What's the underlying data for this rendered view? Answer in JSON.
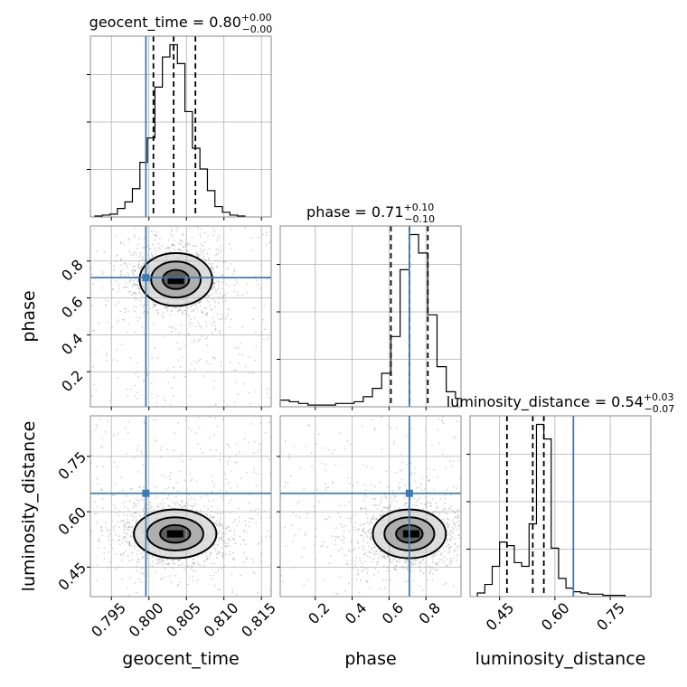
{
  "chart_data": {
    "type": "corner",
    "parameters": [
      {
        "name": "geocent_time",
        "label": "geocent_time",
        "range": [
          0.7922,
          0.8163
        ],
        "ticks": [
          0.795,
          0.8,
          0.805,
          0.81,
          0.815
        ],
        "tick_labels": [
          "0.795",
          "0.800",
          "0.805",
          "0.810",
          "0.815"
        ],
        "truth": 0.7996,
        "quantiles": [
          0.8006,
          0.8033,
          0.8062
        ],
        "title": {
          "prefix": "geocent_time = ",
          "value": "0.80",
          "plus": "+0.00",
          "minus": "−0.00"
        },
        "hist": {
          "edges": [
            0.7928,
            0.7938,
            0.7948,
            0.7958,
            0.7968,
            0.7978,
            0.7988,
            0.7998,
            0.8008,
            0.8018,
            0.8028,
            0.8038,
            0.8048,
            0.8058,
            0.8068,
            0.8078,
            0.8088,
            0.8098,
            0.8108,
            0.8118,
            0.8128
          ],
          "counts": [
            1,
            2,
            3,
            9,
            16,
            30,
            58,
            84,
            138,
            170,
            183,
            163,
            112,
            73,
            51,
            28,
            11,
            5,
            2,
            1
          ]
        }
      },
      {
        "name": "phase",
        "label": "phase",
        "range": [
          0.01,
          0.99
        ],
        "ticks": [
          0.2,
          0.4,
          0.6,
          0.8
        ],
        "tick_labels": [
          "0.2",
          "0.4",
          "0.6",
          "0.8"
        ],
        "truth": 0.71,
        "quantiles": [
          0.61,
          0.71,
          0.81
        ],
        "title": {
          "prefix": "phase = ",
          "value": "0.71",
          "plus": "+0.10",
          "minus": "−0.10"
        },
        "hist": {
          "edges": [
            0.01,
            0.06,
            0.11,
            0.16,
            0.21,
            0.26,
            0.31,
            0.36,
            0.41,
            0.46,
            0.51,
            0.56,
            0.61,
            0.66,
            0.71,
            0.76,
            0.81,
            0.86,
            0.91,
            0.96,
            0.99
          ],
          "counts": [
            4,
            3,
            2,
            1,
            1,
            1,
            2,
            2,
            3,
            6,
            11,
            20,
            42,
            82,
            103,
            92,
            55,
            24,
            9,
            5
          ]
        }
      },
      {
        "name": "luminosity_distance",
        "label": "luminosity_distance",
        "range": [
          0.37,
          0.86
        ],
        "ticks": [
          0.45,
          0.6,
          0.75
        ],
        "tick_labels": [
          "0.45",
          "0.60",
          "0.75"
        ],
        "truth": 0.65,
        "quantiles": [
          0.47,
          0.54,
          0.57
        ],
        "title": {
          "prefix": "luminosity_distance = ",
          "value": "0.54",
          "plus": "+0.03",
          "minus": "−0.07"
        },
        "hist": {
          "edges": [
            0.39,
            0.41,
            0.43,
            0.45,
            0.47,
            0.49,
            0.51,
            0.53,
            0.55,
            0.57,
            0.59,
            0.61,
            0.63,
            0.65,
            0.67,
            0.69,
            0.71,
            0.73,
            0.75,
            0.77,
            0.79
          ],
          "counts": [
            3,
            10,
            25,
            45,
            42,
            28,
            25,
            60,
            142,
            130,
            40,
            15,
            7,
            4,
            3,
            2,
            2,
            1,
            1,
            1
          ]
        }
      }
    ],
    "pairs": [
      {
        "x": "geocent_time",
        "y": "phase",
        "center": [
          0.8036,
          0.7
        ],
        "sigma": [
          0.0022,
          0.065
        ],
        "peak": [
          0.8036,
          0.695
        ]
      },
      {
        "x": "geocent_time",
        "y": "luminosity_distance",
        "center": [
          0.8035,
          0.54
        ],
        "sigma": [
          0.0025,
          0.03
        ],
        "peak": [
          0.8035,
          0.54
        ]
      },
      {
        "x": "phase",
        "y": "luminosity_distance",
        "center": [
          0.71,
          0.54
        ],
        "sigma": [
          0.09,
          0.03
        ],
        "peak": [
          0.72,
          0.54
        ]
      }
    ],
    "truth_color": "#3d7bb5",
    "grid": true
  }
}
